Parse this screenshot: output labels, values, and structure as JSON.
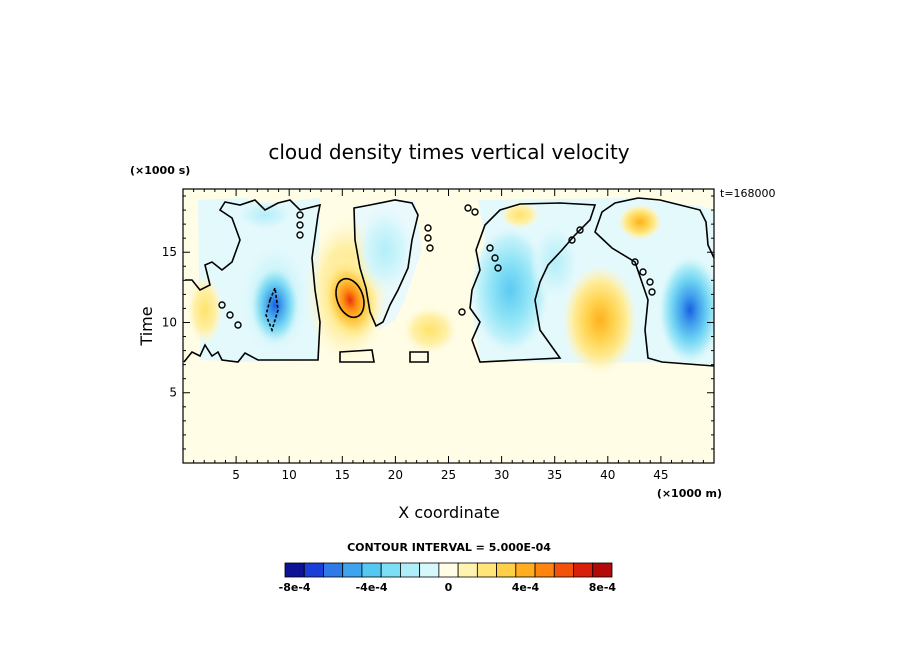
{
  "chart_data": {
    "type": "heatmap",
    "title": "cloud density times vertical velocity",
    "xlabel": "X coordinate",
    "ylabel": "Time",
    "x_unit": "(×1000 m)",
    "y_unit": "(×1000 s)",
    "time_label": "t=168000",
    "xlim": [
      0,
      50
    ],
    "ylim": [
      0,
      19.5
    ],
    "x_ticks": [
      5,
      10,
      15,
      20,
      25,
      30,
      35,
      40,
      45
    ],
    "y_ticks": [
      5,
      10,
      15
    ],
    "contour_interval_label": "CONTOUR INTERVAL = 5.000E-04",
    "colorbar": {
      "colors": [
        "#0d1296",
        "#1a3ed8",
        "#2e7be6",
        "#3ea4ee",
        "#54c8f2",
        "#7ddff5",
        "#aeeef9",
        "#d6f7fb",
        "#fffde6",
        "#fff3b0",
        "#ffe57a",
        "#ffcf47",
        "#ffae1f",
        "#ff8410",
        "#f2520c",
        "#d81f0c",
        "#b10a08"
      ],
      "tick_labels": [
        "-8e-4",
        "-4e-4",
        "0",
        "4e-4",
        "8e-4"
      ],
      "tick_values": [
        -0.0008,
        -0.0004,
        0,
        0.0004,
        0.0008
      ]
    },
    "features": [
      {
        "x": 8.5,
        "y": 11.2,
        "value": -0.00075
      },
      {
        "x": 16,
        "y": 12.2,
        "value": 0.00075
      },
      {
        "x": 31,
        "y": 13,
        "value": -0.00035
      },
      {
        "x": 39,
        "y": 10.2,
        "value": 0.0005
      },
      {
        "x": 47,
        "y": 11,
        "value": -0.0005
      },
      {
        "x": 2,
        "y": 11,
        "value": 0.00025
      },
      {
        "x": 21,
        "y": 14,
        "value": -0.0002
      }
    ]
  }
}
